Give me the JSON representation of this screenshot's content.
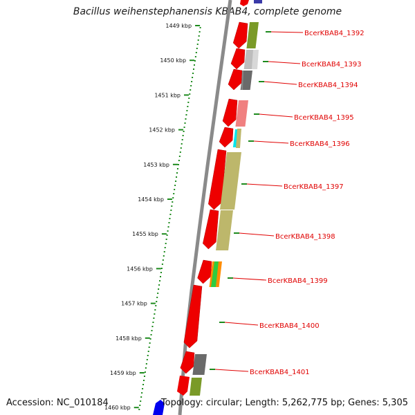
{
  "title": "Bacillus weihenstephanensis KBAB4, complete genome",
  "footer": {
    "accession": "Accession: NC_010184",
    "summary": "Topology: circular; Length: 5,262,775 bp; Genes: 5,305"
  },
  "colors": {
    "cds_strand": "#ee0000",
    "backbone": "#8a8a8a",
    "scale_dots": "#1c8a1c",
    "label": "#e00000"
  },
  "scale_ticks": [
    {
      "label": "1449 kbp",
      "kbp": 1449
    },
    {
      "label": "1450 kbp",
      "kbp": 1450
    },
    {
      "label": "1451 kbp",
      "kbp": 1451
    },
    {
      "label": "1452 kbp",
      "kbp": 1452
    },
    {
      "label": "1453 kbp",
      "kbp": 1453
    },
    {
      "label": "1454 kbp",
      "kbp": 1454
    },
    {
      "label": "1455 kbp",
      "kbp": 1455
    },
    {
      "label": "1456 kbp",
      "kbp": 1456
    },
    {
      "label": "1457 kbp",
      "kbp": 1457
    },
    {
      "label": "1458 kbp",
      "kbp": 1458
    },
    {
      "label": "1459 kbp",
      "kbp": 1459
    },
    {
      "label": "1460 kbp",
      "kbp": 1460
    }
  ],
  "genes": [
    {
      "name": "BcerKBAB4_1392",
      "cog_color": "#7a9a28"
    },
    {
      "name": "BcerKBAB4_1393",
      "cog_color": "#bdbdbd"
    },
    {
      "name": "BcerKBAB4_1394",
      "cog_color": "#6a6a6a"
    },
    {
      "name": "BcerKBAB4_1395",
      "cog_color": "#f08080"
    },
    {
      "name": "BcerKBAB4_1396",
      "cog_color": "#00e5ee"
    },
    {
      "name": "BcerKBAB4_1397",
      "cog_color": "#bdb76b"
    },
    {
      "name": "BcerKBAB4_1398",
      "cog_color": "#bdb76b"
    },
    {
      "name": "BcerKBAB4_1399",
      "cog_color": "#ff8c00"
    },
    {
      "name": "BcerKBAB4_1400",
      "cog_color": ""
    },
    {
      "name": "BcerKBAB4_1401",
      "cog_color": "#6a6a6a"
    }
  ]
}
